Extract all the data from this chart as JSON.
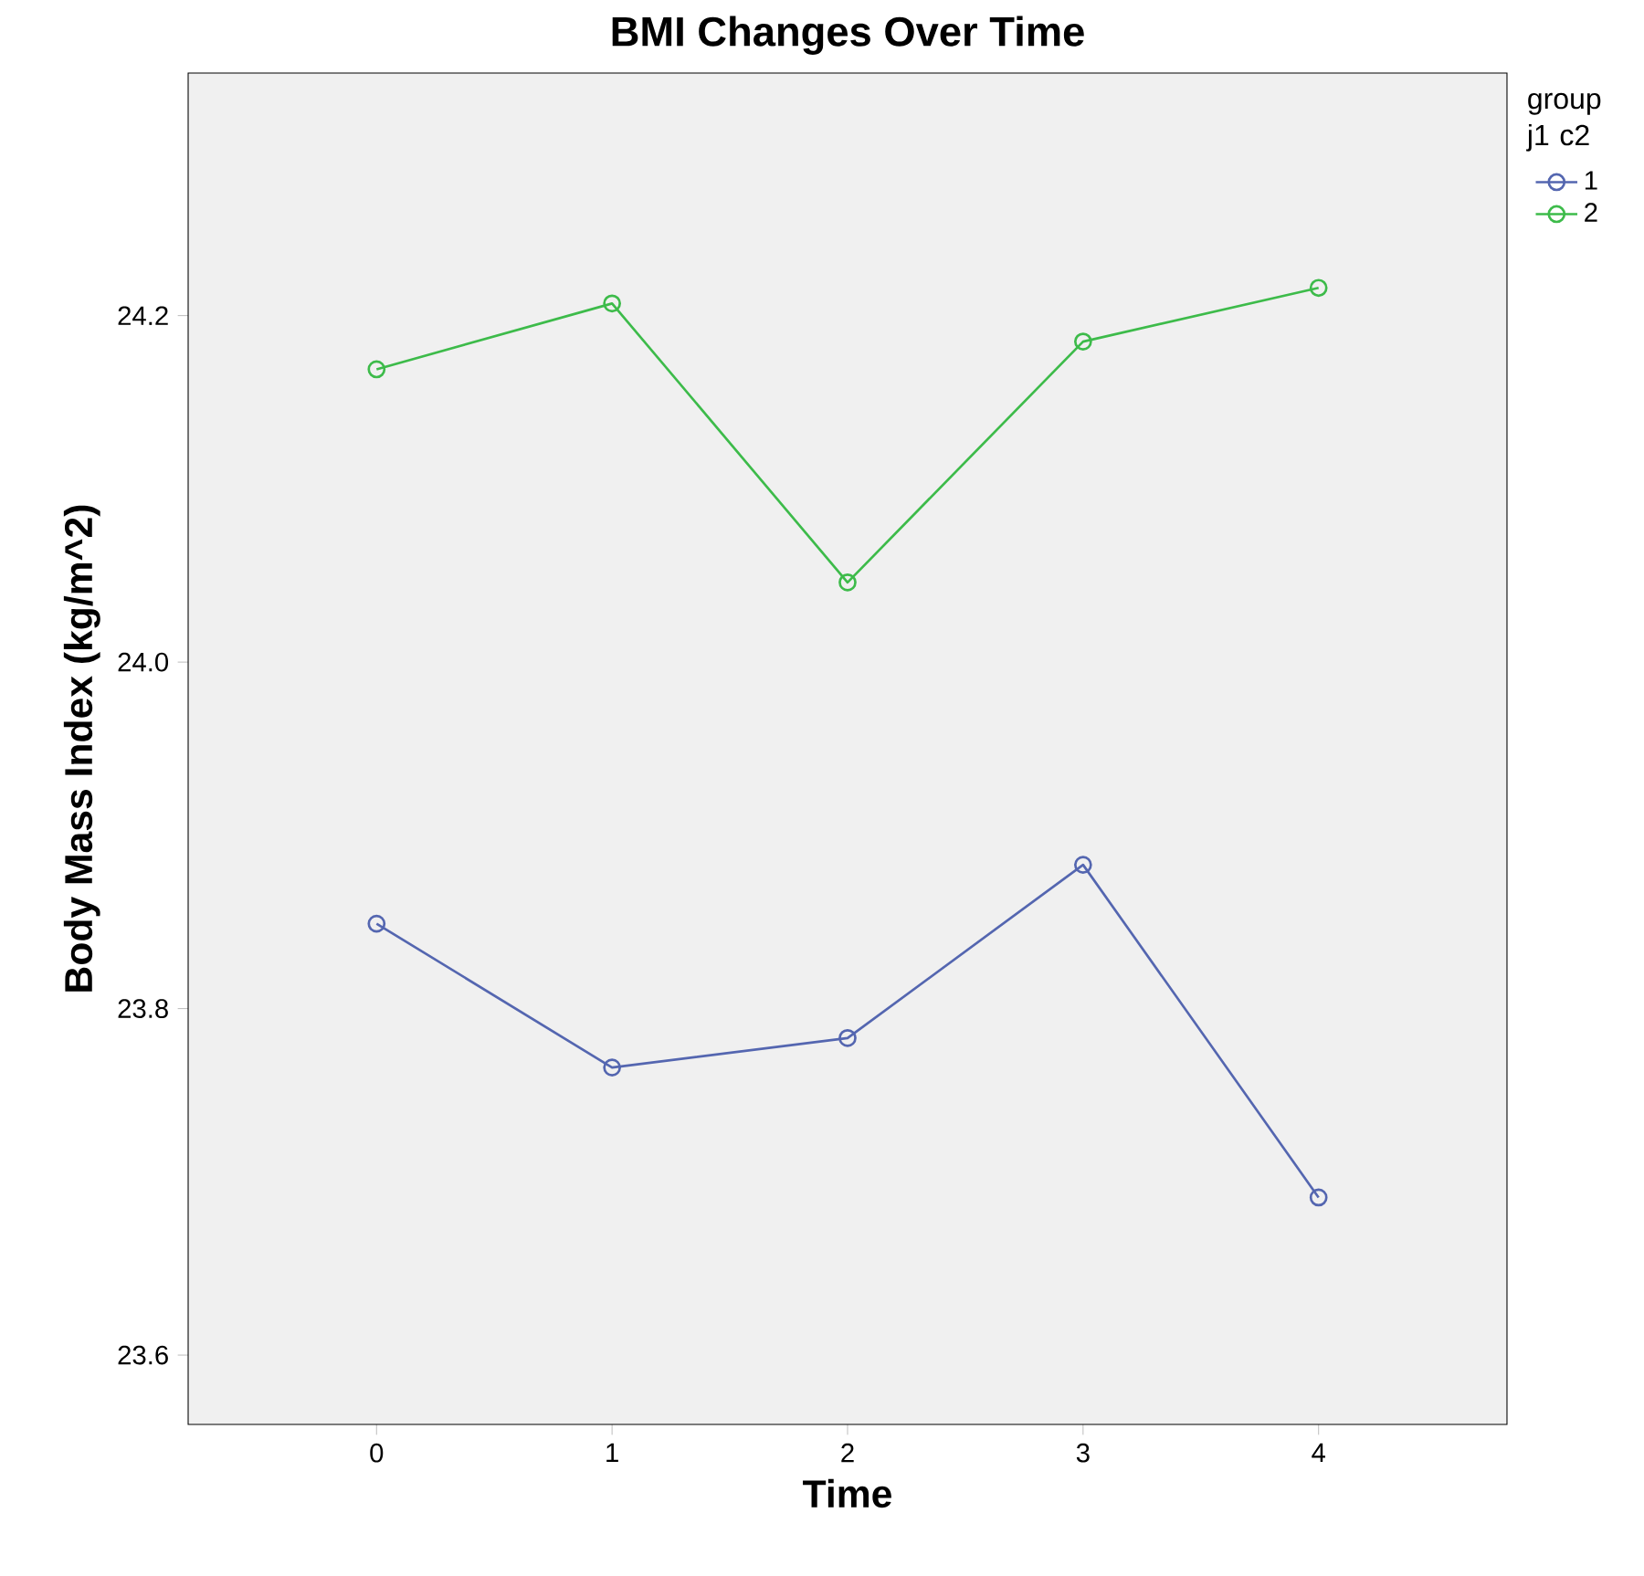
{
  "chart_data": {
    "type": "line",
    "title": "BMI Changes Over Time",
    "xlabel": "Time",
    "ylabel": "Body Mass Index (kg/m^2)",
    "legend_title": "group j1 c2",
    "x": [
      0,
      1,
      2,
      3,
      4
    ],
    "series": [
      {
        "name": "1",
        "color": "#5466b0",
        "values": [
          23.849,
          23.766,
          23.783,
          23.883,
          23.691
        ]
      },
      {
        "name": "2",
        "color": "#3dbb4a",
        "values": [
          24.169,
          24.207,
          24.046,
          24.185,
          24.216
        ]
      }
    ],
    "xlim": [
      -0.8,
      4.8
    ],
    "ylim": [
      23.56,
      24.34
    ],
    "xticks": [
      0,
      1,
      2,
      3,
      4
    ],
    "yticks": [
      {
        "value": 23.6,
        "label": "23.6"
      },
      {
        "value": 23.8,
        "label": "23.8"
      },
      {
        "value": 24.0,
        "label": "24.0"
      },
      {
        "value": 24.2,
        "label": "24.2"
      }
    ],
    "legend": "top right",
    "marker": "circle",
    "grid": false
  }
}
